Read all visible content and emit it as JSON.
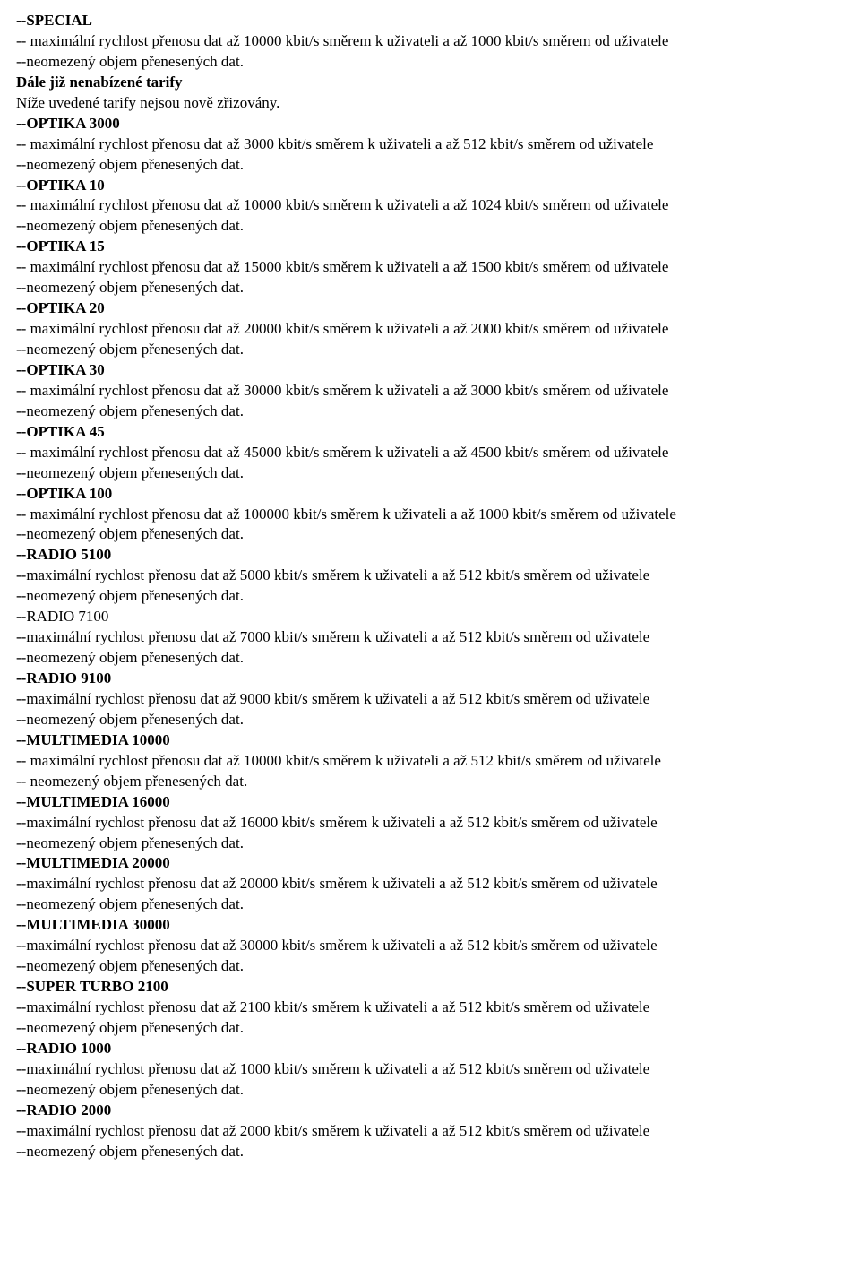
{
  "intro": {
    "special_name": "--SPECIAL",
    "special_speed": "-- maximální rychlost přenosu dat až 10000 kbit/s směrem k uživateli a až 1000 kbit/s směrem od uživatele",
    "special_unlimited": "--neomezený objem přenesených dat.",
    "discontinued_heading": "Dále již nenabízené tarify",
    "discontinued_note": "Níže uvedené tarify nejsou nově zřizovány."
  },
  "tariffs": [
    {
      "name": "--OPTIKA 3000",
      "speed": "-- maximální rychlost přenosu dat až 3000 kbit/s směrem k uživateli a až 512 kbit/s směrem od uživatele",
      "unlimited": "--neomezený objem přenesených dat."
    },
    {
      "name": "--OPTIKA 10",
      "speed": "-- maximální rychlost přenosu dat až 10000 kbit/s směrem k uživateli a až 1024 kbit/s směrem od uživatele",
      "unlimited": "--neomezený objem přenesených dat."
    },
    {
      "name": "--OPTIKA 15",
      "speed": "-- maximální rychlost přenosu dat až 15000 kbit/s směrem k uživateli a až 1500 kbit/s směrem od uživatele",
      "unlimited": "--neomezený objem přenesených dat."
    },
    {
      "name": "--OPTIKA 20",
      "speed": "-- maximální rychlost přenosu dat až 20000 kbit/s směrem k uživateli a až 2000 kbit/s směrem od uživatele",
      "unlimited": "--neomezený objem přenesených dat."
    },
    {
      "name": "--OPTIKA 30",
      "speed": "-- maximální rychlost přenosu dat až 30000 kbit/s směrem k uživateli a až 3000 kbit/s směrem od uživatele",
      "unlimited": "--neomezený objem přenesených dat."
    },
    {
      "name": "--OPTIKA 45",
      "speed": "-- maximální rychlost přenosu dat až 45000 kbit/s směrem k uživateli a až 4500 kbit/s směrem od uživatele",
      "unlimited": "--neomezený objem přenesených dat."
    },
    {
      "name": "--OPTIKA 100",
      "speed": "-- maximální rychlost přenosu dat až 100000 kbit/s směrem k uživateli a až 1000 kbit/s směrem od uživatele",
      "unlimited": "--neomezený objem přenesených dat."
    },
    {
      "name": "--RADIO 5100",
      "speed": "--maximální rychlost přenosu dat až 5000 kbit/s směrem k uživateli a až 512 kbit/s směrem od uživatele",
      "unlimited": "--neomezený objem přenesených dat."
    },
    {
      "name": "--RADIO 7100",
      "name_bold": false,
      "speed": "--maximální rychlost přenosu dat až 7000 kbit/s směrem k uživateli a až 512 kbit/s směrem od uživatele",
      "unlimited": "--neomezený objem přenesených dat."
    },
    {
      "name": "--RADIO 9100",
      "speed": "--maximální rychlost přenosu dat až 9000 kbit/s směrem k uživateli a až 512 kbit/s směrem od uživatele",
      "unlimited": "--neomezený objem přenesených dat."
    },
    {
      "name": "--MULTIMEDIA 10000",
      "speed": "-- maximální rychlost přenosu dat až 10000 kbit/s směrem k uživateli a až 512 kbit/s směrem od uživatele",
      "unlimited": "-- neomezený objem přenesených dat."
    },
    {
      "name": "--MULTIMEDIA 16000",
      "speed": "--maximální rychlost přenosu dat až 16000 kbit/s směrem k uživateli a až 512 kbit/s směrem od uživatele",
      "unlimited": "--neomezený objem přenesených dat."
    },
    {
      "name": "--MULTIMEDIA 20000",
      "speed": "--maximální rychlost přenosu dat až 20000 kbit/s směrem k uživateli a až 512 kbit/s směrem od uživatele",
      "unlimited": "--neomezený objem přenesených dat."
    },
    {
      "name": "--MULTIMEDIA 30000",
      "speed": "--maximální rychlost přenosu dat až 30000 kbit/s směrem k uživateli a až 512 kbit/s směrem od uživatele",
      "unlimited": "--neomezený objem přenesených dat."
    },
    {
      "name": "--SUPER TURBO 2100",
      "speed": "--maximální rychlost přenosu dat až 2100 kbit/s směrem k uživateli a až 512 kbit/s směrem od uživatele",
      "unlimited": "--neomezený objem přenesených dat."
    },
    {
      "name": "--RADIO 1000",
      "speed": "--maximální rychlost přenosu dat až 1000 kbit/s směrem k uživateli a až 512 kbit/s směrem od uživatele",
      "unlimited": "--neomezený objem přenesených dat."
    },
    {
      "name": "--RADIO 2000",
      "speed": "--maximální rychlost přenosu dat až 2000 kbit/s směrem k uživateli a až 512 kbit/s směrem od uživatele",
      "unlimited": "--neomezený objem přenesených dat."
    }
  ]
}
